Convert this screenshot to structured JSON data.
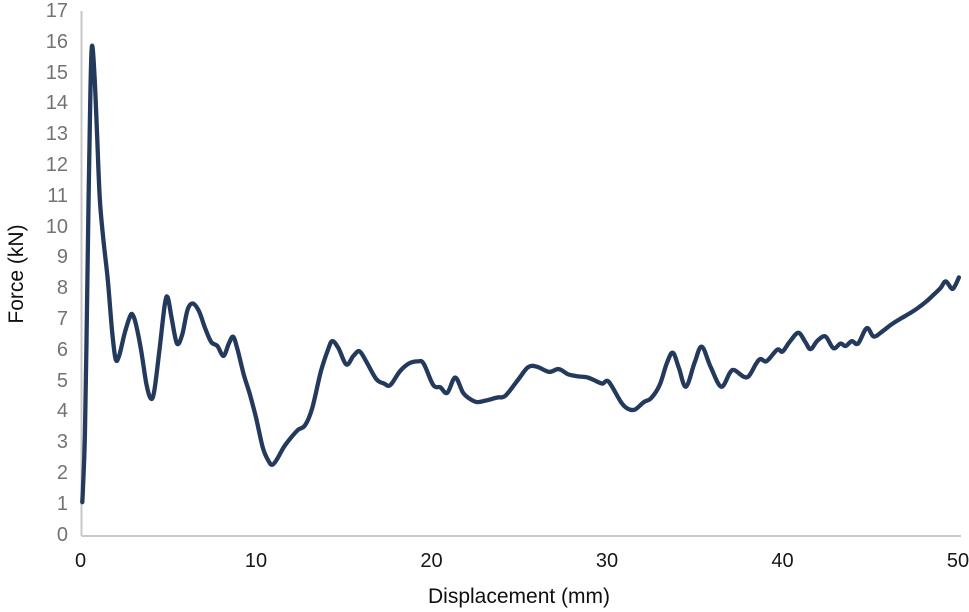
{
  "chart_data": {
    "type": "line",
    "title": "",
    "xlabel": "Displacement (mm)",
    "ylabel": "Force (kN)",
    "xlim": [
      0,
      50
    ],
    "ylim": [
      0,
      17
    ],
    "x_ticks": [
      0,
      10,
      20,
      30,
      40,
      50
    ],
    "y_ticks": [
      0,
      1,
      2,
      3,
      4,
      5,
      6,
      7,
      8,
      9,
      10,
      11,
      12,
      13,
      14,
      15,
      16,
      17
    ],
    "grid": false,
    "legend": false,
    "colors": {
      "line": "#243a5c",
      "axis": "#c8c8c8",
      "y_tick_text": "#737373",
      "x_tick_text": "#171717",
      "axis_title_text": "#0f0f0f",
      "background": "#ffffff"
    },
    "series": [
      {
        "name": "Force vs Displacement",
        "points": [
          [
            0.1,
            1.05
          ],
          [
            0.15,
            1.6
          ],
          [
            0.25,
            3.2
          ],
          [
            0.35,
            6.5
          ],
          [
            0.45,
            10.5
          ],
          [
            0.55,
            14.0
          ],
          [
            0.65,
            15.85
          ],
          [
            0.8,
            14.9
          ],
          [
            0.95,
            12.9
          ],
          [
            1.1,
            10.9
          ],
          [
            1.3,
            9.6
          ],
          [
            1.55,
            8.3
          ],
          [
            1.8,
            6.6
          ],
          [
            2.0,
            5.7
          ],
          [
            2.2,
            5.8
          ],
          [
            2.5,
            6.5
          ],
          [
            2.8,
            7.05
          ],
          [
            2.95,
            7.15
          ],
          [
            3.15,
            6.85
          ],
          [
            3.45,
            6.0
          ],
          [
            3.75,
            4.9
          ],
          [
            4.0,
            4.42
          ],
          [
            4.2,
            4.65
          ],
          [
            4.5,
            6.0
          ],
          [
            4.8,
            7.45
          ],
          [
            4.97,
            7.7
          ],
          [
            5.2,
            7.0
          ],
          [
            5.5,
            6.2
          ],
          [
            5.8,
            6.5
          ],
          [
            6.1,
            7.3
          ],
          [
            6.4,
            7.5
          ],
          [
            6.75,
            7.25
          ],
          [
            7.1,
            6.7
          ],
          [
            7.45,
            6.25
          ],
          [
            7.8,
            6.12
          ],
          [
            8.15,
            5.8
          ],
          [
            8.45,
            6.2
          ],
          [
            8.7,
            6.42
          ],
          [
            8.95,
            6.0
          ],
          [
            9.3,
            5.2
          ],
          [
            9.65,
            4.55
          ],
          [
            10.0,
            3.8
          ],
          [
            10.4,
            2.8
          ],
          [
            10.75,
            2.35
          ],
          [
            10.95,
            2.27
          ],
          [
            11.2,
            2.45
          ],
          [
            11.6,
            2.85
          ],
          [
            12.0,
            3.15
          ],
          [
            12.4,
            3.4
          ],
          [
            12.8,
            3.55
          ],
          [
            13.2,
            4.1
          ],
          [
            13.7,
            5.3
          ],
          [
            14.1,
            6.0
          ],
          [
            14.35,
            6.28
          ],
          [
            14.7,
            6.05
          ],
          [
            15.15,
            5.52
          ],
          [
            15.55,
            5.8
          ],
          [
            15.9,
            5.95
          ],
          [
            16.3,
            5.6
          ],
          [
            16.85,
            5.05
          ],
          [
            17.3,
            4.9
          ],
          [
            17.65,
            4.85
          ],
          [
            18.2,
            5.3
          ],
          [
            18.7,
            5.55
          ],
          [
            19.2,
            5.62
          ],
          [
            19.55,
            5.55
          ],
          [
            20.1,
            4.85
          ],
          [
            20.5,
            4.78
          ],
          [
            20.9,
            4.6
          ],
          [
            21.35,
            5.1
          ],
          [
            21.8,
            4.6
          ],
          [
            22.2,
            4.4
          ],
          [
            22.6,
            4.3
          ],
          [
            23.1,
            4.35
          ],
          [
            23.75,
            4.45
          ],
          [
            24.2,
            4.5
          ],
          [
            24.9,
            5.0
          ],
          [
            25.5,
            5.43
          ],
          [
            26.0,
            5.45
          ],
          [
            26.7,
            5.28
          ],
          [
            27.25,
            5.37
          ],
          [
            27.8,
            5.2
          ],
          [
            28.4,
            5.13
          ],
          [
            28.9,
            5.1
          ],
          [
            29.5,
            4.95
          ],
          [
            29.75,
            4.9
          ],
          [
            30.1,
            4.96
          ],
          [
            30.8,
            4.3
          ],
          [
            31.2,
            4.08
          ],
          [
            31.6,
            4.06
          ],
          [
            32.1,
            4.3
          ],
          [
            32.5,
            4.42
          ],
          [
            33.0,
            4.85
          ],
          [
            33.4,
            5.55
          ],
          [
            33.75,
            5.9
          ],
          [
            34.1,
            5.4
          ],
          [
            34.5,
            4.8
          ],
          [
            35.0,
            5.6
          ],
          [
            35.4,
            6.1
          ],
          [
            35.9,
            5.45
          ],
          [
            36.5,
            4.8
          ],
          [
            37.0,
            5.25
          ],
          [
            37.25,
            5.34
          ],
          [
            37.8,
            5.12
          ],
          [
            38.1,
            5.16
          ],
          [
            38.5,
            5.55
          ],
          [
            38.75,
            5.7
          ],
          [
            39.1,
            5.63
          ],
          [
            39.7,
            6.0
          ],
          [
            40.0,
            5.94
          ],
          [
            40.4,
            6.25
          ],
          [
            40.9,
            6.55
          ],
          [
            41.3,
            6.25
          ],
          [
            41.6,
            6.02
          ],
          [
            42.0,
            6.3
          ],
          [
            42.45,
            6.43
          ],
          [
            42.9,
            6.05
          ],
          [
            43.3,
            6.2
          ],
          [
            43.6,
            6.12
          ],
          [
            43.95,
            6.28
          ],
          [
            44.3,
            6.2
          ],
          [
            44.8,
            6.7
          ],
          [
            45.2,
            6.43
          ],
          [
            45.7,
            6.6
          ],
          [
            46.2,
            6.82
          ],
          [
            46.7,
            7.0
          ],
          [
            47.3,
            7.2
          ],
          [
            47.7,
            7.35
          ],
          [
            48.2,
            7.57
          ],
          [
            48.6,
            7.78
          ],
          [
            49.0,
            8.0
          ],
          [
            49.3,
            8.22
          ],
          [
            49.65,
            7.98
          ],
          [
            49.85,
            8.1
          ],
          [
            50.05,
            8.35
          ]
        ]
      }
    ]
  }
}
